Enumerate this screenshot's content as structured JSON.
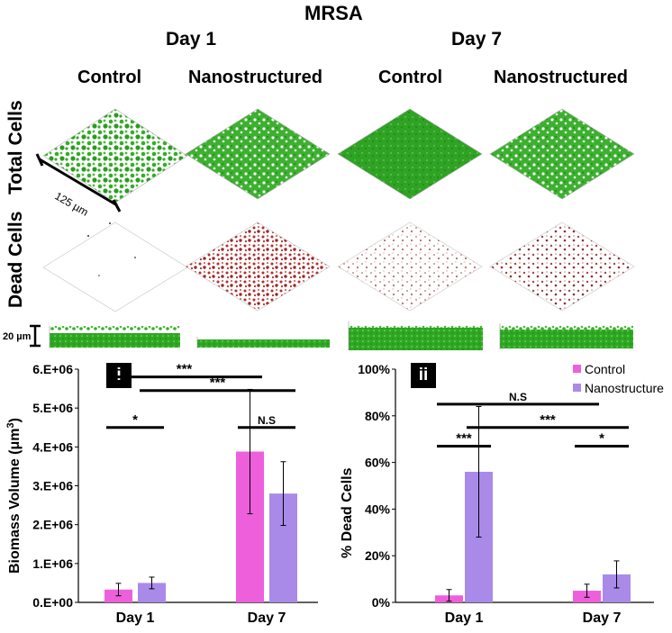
{
  "figure": {
    "title": "MRSA",
    "day_headers": [
      "Day 1",
      "Day 7"
    ],
    "conditions": [
      "Control",
      "Nanostructured",
      "Control",
      "Nanostructured"
    ],
    "row_labels": [
      "Total Cells",
      "Dead Cells"
    ],
    "scale_xy": "125 µm",
    "scale_z": "20 µm",
    "colors": {
      "live": "#29b01f",
      "dead": "#a22a2a",
      "control": "#ee5fdc",
      "nano": "#a98ae9"
    }
  },
  "chart_data": [
    {
      "panel": "i",
      "type": "bar",
      "categories": [
        "Day 1",
        "Day 7"
      ],
      "series": [
        {
          "name": "Control",
          "values": [
            330000,
            3880000
          ],
          "errors": [
            160000,
            1600000
          ]
        },
        {
          "name": "Nanostructure",
          "values": [
            500000,
            2800000
          ],
          "errors": [
            150000,
            820000
          ]
        }
      ],
      "ylabel_main": "Biomass Volume (μm",
      "ylabel_sup": "3",
      "ylabel_close": ")",
      "ylim": [
        0,
        6000000
      ],
      "yticks": [
        0,
        1000000,
        2000000,
        3000000,
        4000000,
        5000000,
        6000000
      ],
      "ytick_labels": [
        "0.E+00",
        "1.E+06",
        "2.E+06",
        "3.E+06",
        "4.E+06",
        "5.E+06",
        "6.E+06"
      ],
      "significance": [
        {
          "label": "*",
          "from": [
            0,
            0
          ],
          "to": [
            0,
            1
          ],
          "y": 4500000
        },
        {
          "label": "***",
          "from": [
            0,
            0
          ],
          "to": [
            1,
            0
          ],
          "y": 5800000
        },
        {
          "label": "***",
          "from": [
            0,
            1
          ],
          "to": [
            1,
            1
          ],
          "y": 5450000
        },
        {
          "label": "N.S",
          "from": [
            1,
            0
          ],
          "to": [
            1,
            1
          ],
          "y": 4500000
        }
      ]
    },
    {
      "panel": "ii",
      "type": "bar",
      "categories": [
        "Day 1",
        "Day 7"
      ],
      "series": [
        {
          "name": "Control",
          "values": [
            3,
            5
          ],
          "errors": [
            2.5,
            2.8
          ]
        },
        {
          "name": "Nanostructure",
          "values": [
            56,
            12
          ],
          "errors": [
            28,
            5.8
          ]
        }
      ],
      "ylabel": "% Dead Cells",
      "ylim": [
        0,
        100
      ],
      "yticks": [
        0,
        20,
        40,
        60,
        80,
        100
      ],
      "ytick_labels": [
        "0%",
        "20%",
        "40%",
        "60%",
        "80%",
        "100%"
      ],
      "legend": [
        "Control",
        "Nanostructure"
      ],
      "legend_position": "top-right",
      "significance": [
        {
          "label": "N.S",
          "from": [
            0,
            0
          ],
          "to": [
            1,
            0
          ],
          "y": 85
        },
        {
          "label": "***",
          "from": [
            0,
            0
          ],
          "to": [
            0,
            1
          ],
          "y": 67
        },
        {
          "label": "***",
          "from": [
            0,
            1
          ],
          "to": [
            1,
            1
          ],
          "y": 75
        },
        {
          "label": "*",
          "from": [
            1,
            0
          ],
          "to": [
            1,
            1
          ],
          "y": 67
        }
      ]
    }
  ]
}
